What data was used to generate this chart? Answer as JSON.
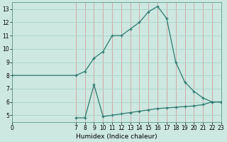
{
  "xlabel": "Humidex (Indice chaleur)",
  "bg_color": "#cce8e0",
  "line_color": "#2d7a6e",
  "upper_x": [
    0,
    7,
    8,
    9,
    10,
    11,
    12,
    13,
    14,
    15,
    16,
    17,
    18,
    19,
    20,
    21,
    22,
    23
  ],
  "upper_y": [
    8.0,
    8.0,
    8.3,
    9.3,
    9.8,
    11.0,
    11.0,
    11.5,
    12.0,
    12.8,
    13.2,
    12.3,
    9.0,
    7.5,
    6.8,
    6.3,
    6.0,
    6.0
  ],
  "lower_x": [
    7,
    8,
    9,
    10,
    11,
    12,
    13,
    14,
    15,
    16,
    17,
    18,
    19,
    20,
    21,
    22,
    23
  ],
  "lower_y": [
    4.8,
    4.8,
    7.3,
    4.9,
    5.0,
    5.1,
    5.2,
    5.3,
    5.4,
    5.5,
    5.55,
    5.6,
    5.65,
    5.7,
    5.8,
    6.0,
    6.0
  ],
  "xlim": [
    0,
    23
  ],
  "ylim": [
    4.5,
    13.5
  ],
  "yticks": [
    5,
    6,
    7,
    8,
    9,
    10,
    11,
    12,
    13
  ],
  "xticks": [
    0,
    7,
    8,
    9,
    10,
    11,
    12,
    13,
    14,
    15,
    16,
    17,
    18,
    19,
    20,
    21,
    22,
    23
  ],
  "xlabel_fontsize": 6.5,
  "tick_fontsize": 5.5,
  "vgrid_color": "#d4a0a0",
  "hgrid_color": "#aad4cc"
}
